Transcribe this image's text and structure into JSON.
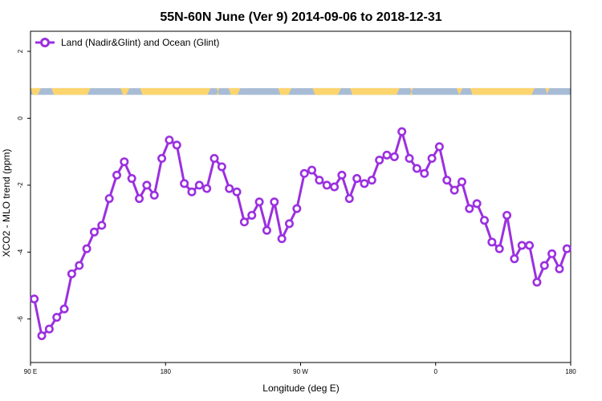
{
  "chart_data": {
    "type": "line",
    "title": "55N-60N June (Ver 9)   2014-09-06 to 2018-12-31",
    "xlabel": "Longitude (deg E)",
    "ylabel": "XCO2 - MLO trend (ppm)",
    "xlim": [
      90,
      450
    ],
    "ylim": [
      -7.3,
      2.6
    ],
    "x_ticks": [
      {
        "value": 90,
        "label": "90 E"
      },
      {
        "value": 180,
        "label": "180"
      },
      {
        "value": 270,
        "label": "90 W"
      },
      {
        "value": 360,
        "label": "0"
      },
      {
        "value": 450,
        "label": "180"
      }
    ],
    "y_ticks": [
      {
        "value": -6,
        "label": "-6"
      },
      {
        "value": -4,
        "label": "-4"
      },
      {
        "value": -2,
        "label": "-2"
      },
      {
        "value": 0,
        "label": "0"
      },
      {
        "value": 2,
        "label": "2"
      }
    ],
    "legend_position": "top-left",
    "grid": false,
    "land_ocean_strip": {
      "y_range": [
        0.7,
        0.9
      ],
      "ocean_color": "#a8bcd6",
      "land_color": "#fcd56e"
    },
    "series": [
      {
        "name": "Land (Nadir&Glint) and Ocean (Glint)",
        "color": "#9b30e0",
        "x": [
          92.5,
          97.5,
          102.5,
          107.5,
          112.5,
          117.5,
          122.5,
          127.5,
          132.5,
          137.5,
          142.5,
          147.5,
          152.5,
          157.5,
          162.5,
          167.5,
          172.5,
          177.5,
          182.5,
          187.5,
          192.5,
          197.5,
          202.5,
          207.5,
          212.5,
          217.5,
          222.5,
          227.5,
          232.5,
          237.5,
          242.5,
          247.5,
          252.5,
          257.5,
          262.5,
          267.5,
          272.5,
          277.5,
          282.5,
          287.5,
          292.5,
          297.5,
          302.5,
          307.5,
          312.5,
          317.5,
          322.5,
          327.5,
          332.5,
          337.5,
          342.5,
          347.5,
          352.5,
          357.5,
          362.5,
          367.5,
          372.5,
          377.5,
          382.5,
          387.5,
          392.5,
          397.5,
          402.5,
          407.5,
          412.5,
          417.5,
          422.5,
          427.5,
          432.5,
          437.5,
          442.5,
          447.5
        ],
        "values": [
          -5.4,
          -6.5,
          -6.3,
          -5.95,
          -5.7,
          -4.65,
          -4.4,
          -3.9,
          -3.4,
          -3.2,
          -2.4,
          -1.7,
          -1.3,
          -1.8,
          -2.4,
          -2.0,
          -2.3,
          -1.2,
          -0.65,
          -0.8,
          -1.95,
          -2.2,
          -2.0,
          -2.1,
          -1.2,
          -1.45,
          -2.1,
          -2.2,
          -3.1,
          -2.9,
          -2.5,
          -3.35,
          -2.5,
          -3.6,
          -3.15,
          -2.7,
          -1.65,
          -1.55,
          -1.85,
          -2.0,
          -2.05,
          -1.7,
          -2.4,
          -1.8,
          -1.95,
          -1.85,
          -1.25,
          -1.1,
          -1.15,
          -0.4,
          -1.2,
          -1.5,
          -1.65,
          -1.2,
          -0.85,
          -1.85,
          -2.15,
          -1.9,
          -2.7,
          -2.55,
          -3.05,
          -3.7,
          -3.9,
          -2.9,
          -4.2,
          -3.8,
          -3.8,
          -4.9,
          -4.4,
          -4.05,
          -4.5,
          -3.9
        ]
      }
    ]
  }
}
